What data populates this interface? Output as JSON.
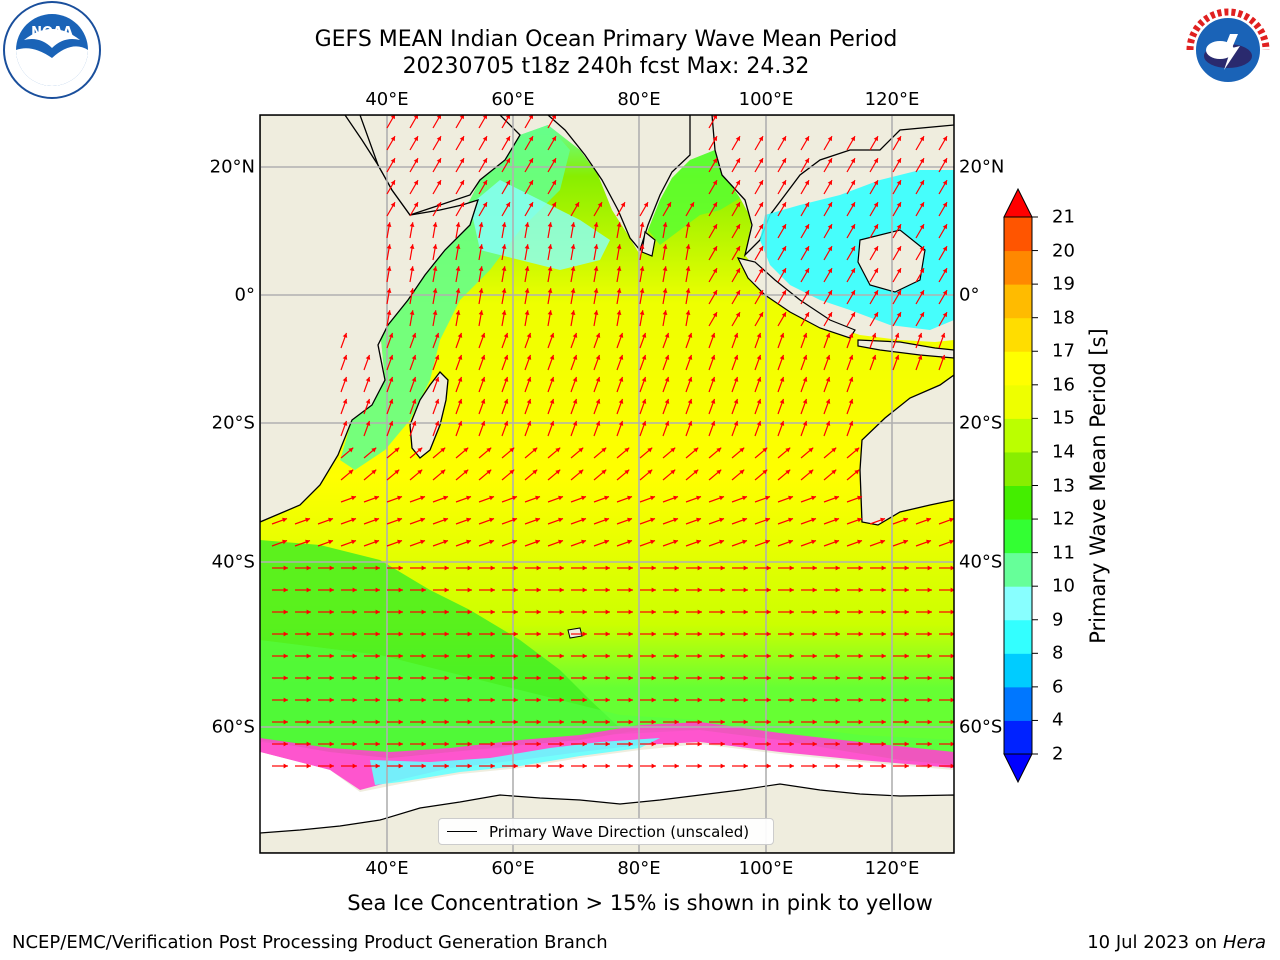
{
  "title_line1": "GEFS MEAN Indian Ocean Primary Wave Mean Period",
  "title_line2": "20230705 t18z 240h fcst   Max: 24.32",
  "lon_labels": [
    "40°E",
    "60°E",
    "80°E",
    "100°E",
    "120°E"
  ],
  "lat_labels_left": [
    "20°N",
    "0°",
    "20°S",
    "40°S",
    "60°S"
  ],
  "lat_labels_right": [
    "20°N",
    "0°",
    "20°S",
    "40°S",
    "60°S"
  ],
  "colorbar": {
    "label": "Primary Wave Mean Period [s]",
    "ticks": [
      "2",
      "4",
      "6",
      "8",
      "9",
      "10",
      "11",
      "12",
      "13",
      "14",
      "15",
      "16",
      "17",
      "18",
      "19",
      "20",
      "21"
    ],
    "colors": [
      "#0022ff",
      "#0077ff",
      "#00ccff",
      "#33ffff",
      "#88ffff",
      "#66ff99",
      "#33ff33",
      "#44ee00",
      "#88ee00",
      "#bbff00",
      "#eeff00",
      "#ffff00",
      "#ffdd00",
      "#ffbb00",
      "#ff8800",
      "#ff5500",
      "#ff2200"
    ],
    "under_color": "#0000ff",
    "over_color": "#ff0000"
  },
  "legend_label": "Primary Wave Direction (unscaled)",
  "subnote": "Sea Ice Concentration > 15% is shown in pink to yellow",
  "footer_left": "NCEP/EMC/Verification Post Processing Product Generation Branch",
  "footer_right_date": "10 Jul 2023 on ",
  "footer_right_machine": "Hera",
  "logos": {
    "left": "noaa-logo",
    "right": "nws-logo"
  },
  "colors": {
    "land": "#efedde",
    "ocean_dominant": "#eeff00",
    "arrow": "#ff0000",
    "ice_fringe": "#ff44cc"
  }
}
